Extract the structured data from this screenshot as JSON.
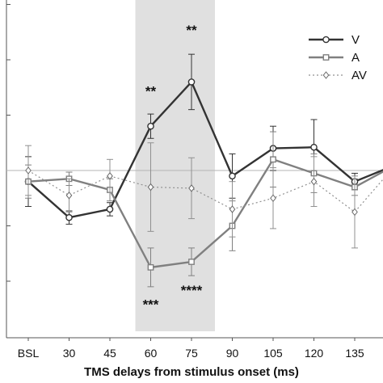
{
  "chart_data": {
    "type": "line",
    "title": "",
    "xlabel": "TMS delays from stimulus onset (ms)",
    "ylabel": "",
    "categories": [
      "BSL",
      "30",
      "45",
      "60",
      "75",
      "90",
      "105",
      "120",
      "135",
      ""
    ],
    "ylim": [
      -4,
      5.2
    ],
    "shaded_region": {
      "from": "60",
      "to": "75"
    },
    "zero_line": true,
    "grid": false,
    "legend_position": "top-right",
    "series": [
      {
        "name": "V",
        "style": "solid dark, circle markers",
        "color": "#333333",
        "values": [
          -0.2,
          -0.85,
          -0.7,
          0.8,
          1.6,
          -0.1,
          0.4,
          0.42,
          -0.2,
          0.1
        ],
        "errors": [
          0.45,
          0.12,
          0.12,
          0.22,
          0.5,
          0.4,
          0.4,
          0.5,
          0.15,
          0.2
        ]
      },
      {
        "name": "A",
        "style": "solid grey, square markers",
        "color": "#808080",
        "values": [
          -0.2,
          -0.15,
          -0.35,
          -1.75,
          -1.65,
          -1.0,
          0.2,
          -0.05,
          -0.3,
          0.1
        ],
        "errors": [
          0.3,
          0.12,
          0.2,
          0.35,
          0.25,
          0.45,
          0.5,
          0.35,
          0.15,
          0.2
        ]
      },
      {
        "name": "AV",
        "style": "dotted grey, diamond markers",
        "color": "#888888",
        "values": [
          0.0,
          -0.45,
          -0.1,
          -0.3,
          -0.32,
          -0.7,
          -0.5,
          -0.2,
          -0.75,
          0.1
        ],
        "errors": [
          0.45,
          0.3,
          0.3,
          0.8,
          0.55,
          0.5,
          0.55,
          0.45,
          0.65,
          0.2
        ]
      }
    ],
    "annotations": [
      {
        "text": "**",
        "category": "60",
        "y": 1.35
      },
      {
        "text": "**",
        "category": "75",
        "y": 2.45
      },
      {
        "text": "***",
        "category": "60",
        "y": -2.5
      },
      {
        "text": "****",
        "category": "75",
        "y": -2.25
      }
    ]
  }
}
